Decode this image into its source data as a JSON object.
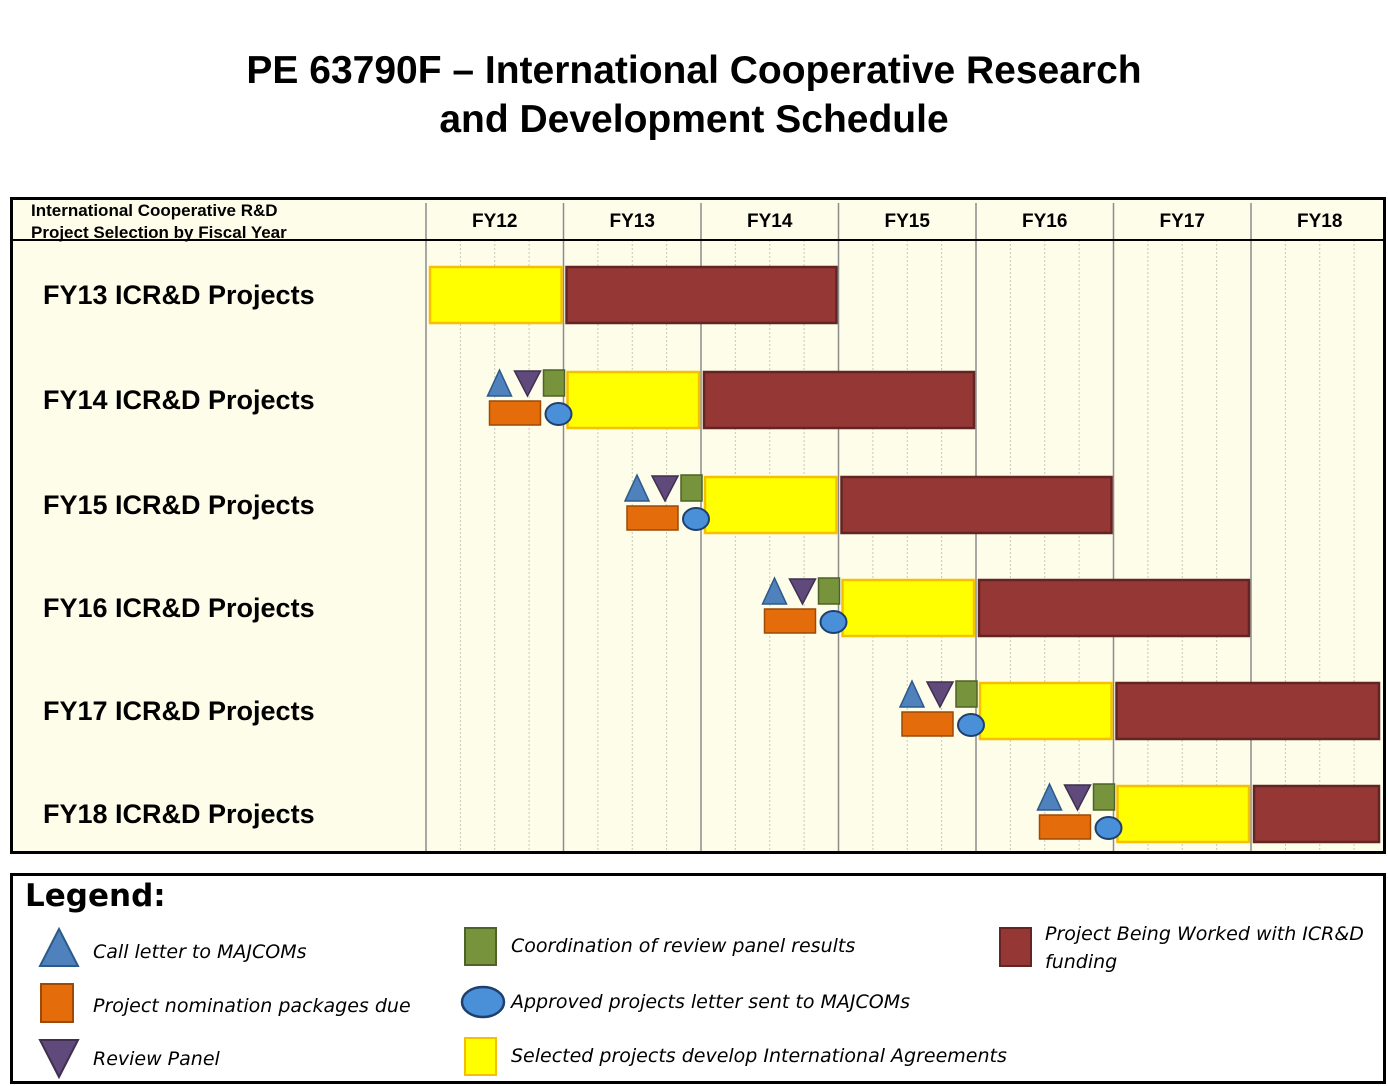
{
  "title": {
    "line1": "PE 63790F – International Cooperative Research",
    "line2": "and Development Schedule"
  },
  "chart_data": {
    "type": "gantt",
    "header_label": [
      "International Cooperative R&D",
      "Project Selection by Fiscal Year"
    ],
    "fiscal_years": [
      "FY12",
      "FY13",
      "FY14",
      "FY15",
      "FY16",
      "FY17",
      "FY18"
    ],
    "colors": {
      "agreements": "#ffff00",
      "agreements_border": "#f5c000",
      "funding": "#953735",
      "funding_border": "#632523",
      "call_letter": "#4f81bd",
      "nomination": "#e46c0a",
      "review_panel": "#604a7b",
      "coordination": "#77933c",
      "approved": "#4a90d9"
    },
    "rows": [
      {
        "label": "FY13  ICR&D Projects",
        "milestones": false,
        "milestone_end": 0,
        "agreements": [
          0.0,
          1.0
        ],
        "funding": [
          1.0,
          3.0
        ]
      },
      {
        "label": "FY14  ICR&D Projects",
        "milestones": true,
        "milestone_end": 1.0,
        "agreements": [
          1.0,
          2.0
        ],
        "funding": [
          2.0,
          4.0
        ]
      },
      {
        "label": "FY15  ICR&D Projects",
        "milestones": true,
        "milestone_end": 2.0,
        "agreements": [
          2.0,
          3.0
        ],
        "funding": [
          3.0,
          5.0
        ]
      },
      {
        "label": "FY16  ICR&D Projects",
        "milestones": true,
        "milestone_end": 3.0,
        "agreements": [
          3.0,
          4.0
        ],
        "funding": [
          4.0,
          6.0
        ]
      },
      {
        "label": "FY17  ICR&D Projects",
        "milestones": true,
        "milestone_end": 4.0,
        "agreements": [
          4.0,
          5.0
        ],
        "funding": [
          5.0,
          7.0
        ]
      },
      {
        "label": "FY18  ICR&D Projects",
        "milestones": true,
        "milestone_end": 5.0,
        "agreements": [
          5.0,
          6.0
        ],
        "funding": [
          6.0,
          7.0
        ]
      }
    ]
  },
  "legend": {
    "title": "Legend:",
    "items": [
      {
        "key": "call_letter",
        "shape": "triangle-up-icon",
        "label": "Call letter to MAJCOMs"
      },
      {
        "key": "nomination",
        "shape": "square-icon",
        "label": "Project nomination packages due"
      },
      {
        "key": "review_panel",
        "shape": "triangle-down-icon",
        "label": "Review Panel"
      },
      {
        "key": "coordination",
        "shape": "square-icon",
        "label": "Coordination of review panel results"
      },
      {
        "key": "approved",
        "shape": "circle-icon",
        "label": "Approved projects letter sent to MAJCOMs"
      },
      {
        "key": "agreements",
        "shape": "square-icon",
        "label": "Selected projects develop International Agreements"
      },
      {
        "key": "funding",
        "shape": "square-icon",
        "label": "Project Being Worked with ICR&D funding"
      }
    ]
  }
}
